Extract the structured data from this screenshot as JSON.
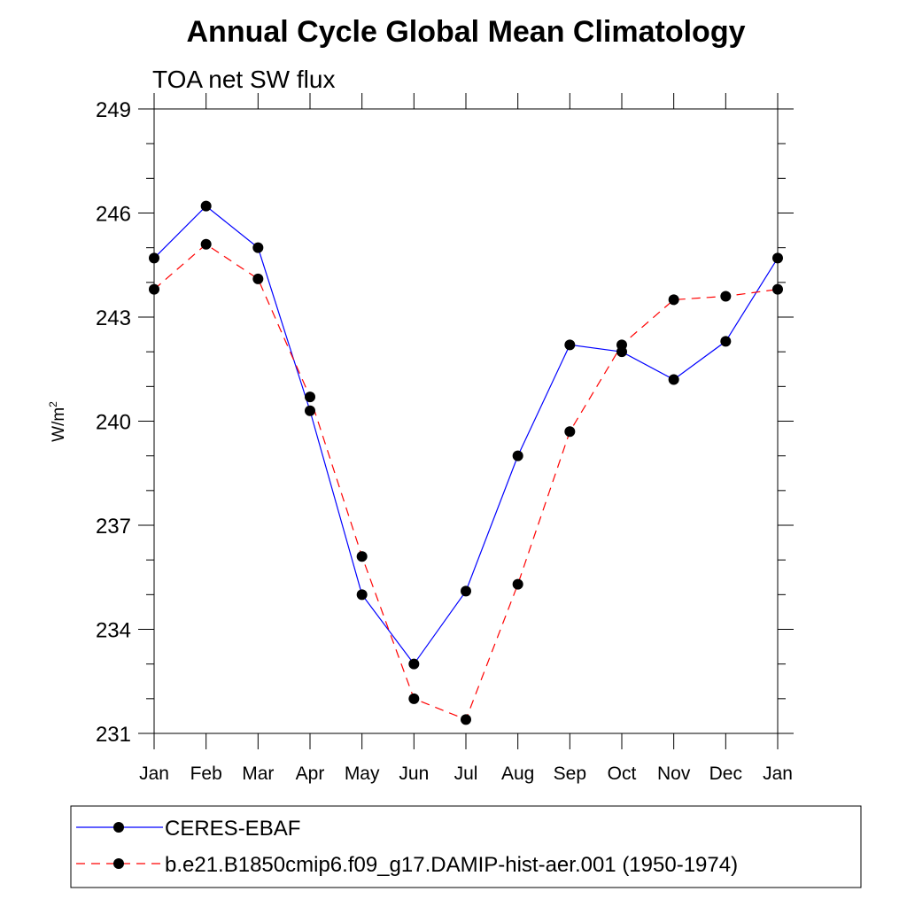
{
  "chart_data": {
    "type": "line",
    "title": "Annual Cycle Global Mean Climatology",
    "subtitle": "TOA net SW flux",
    "ylabel_base": "W/m",
    "ylabel_sup": "2",
    "xlabel": "",
    "categories": [
      "Jan",
      "Feb",
      "Mar",
      "Apr",
      "May",
      "Jun",
      "Jul",
      "Aug",
      "Sep",
      "Oct",
      "Nov",
      "Dec",
      "Jan"
    ],
    "ylim": [
      231,
      249
    ],
    "yticks": [
      231,
      234,
      237,
      240,
      243,
      246,
      249
    ],
    "grid": false,
    "legend_position": "bottom",
    "series": [
      {
        "name": "CERES-EBAF",
        "color": "#0000ff",
        "dash": "solid",
        "marker": "filled-circle",
        "values": [
          244.7,
          246.2,
          245.0,
          240.3,
          235.0,
          233.0,
          235.1,
          239.0,
          242.2,
          242.0,
          241.2,
          242.3,
          244.7
        ]
      },
      {
        "name": "b.e21.B1850cmip6.f09_g17.DAMIP-hist-aer.001 (1950-1974)",
        "color": "#ff0000",
        "dash": "dashed",
        "marker": "filled-circle",
        "values": [
          243.8,
          245.1,
          244.1,
          240.7,
          236.1,
          232.0,
          231.4,
          235.3,
          239.7,
          242.2,
          243.5,
          243.6,
          243.8
        ]
      }
    ]
  }
}
